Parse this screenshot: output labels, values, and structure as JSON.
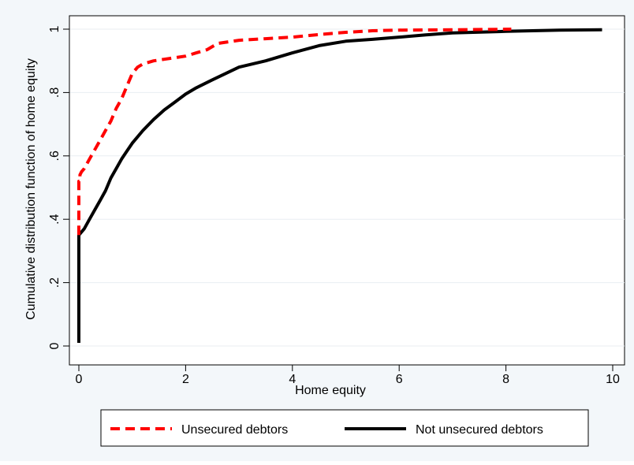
{
  "chart_data": {
    "type": "line",
    "title": "",
    "xlabel": "Home equity",
    "ylabel": "Cumulative distribution function of home equity",
    "xlim": [
      0,
      10
    ],
    "ylim": [
      0,
      1
    ],
    "x_ticks": [
      0,
      2,
      4,
      6,
      8,
      10
    ],
    "y_ticks": [
      0,
      0.2,
      0.4,
      0.6,
      0.8,
      1
    ],
    "x_tick_labels": [
      "0",
      "2",
      "4",
      "6",
      "8",
      "10"
    ],
    "y_tick_labels": [
      "0",
      ".2",
      ".4",
      ".6",
      ".8",
      "1"
    ],
    "grid": "horizontal",
    "legend_position": "bottom",
    "series": [
      {
        "name": "Unsecured debtors",
        "color": "#ff0000",
        "style": "dashed",
        "x": [
          0,
          0,
          0.02,
          0.02,
          0.05,
          0.1,
          0.2,
          0.3,
          0.4,
          0.5,
          0.6,
          0.7,
          0.8,
          0.9,
          1.0,
          1.1,
          1.2,
          1.4,
          1.6,
          1.8,
          2.0,
          2.2,
          2.4,
          2.6,
          2.8,
          3.0,
          3.5,
          4.0,
          4.5,
          5.0,
          5.5,
          6.0,
          7.0,
          8.1
        ],
        "y": [
          0.35,
          0.52,
          0.52,
          0.54,
          0.55,
          0.56,
          0.59,
          0.62,
          0.65,
          0.68,
          0.71,
          0.75,
          0.78,
          0.82,
          0.86,
          0.88,
          0.89,
          0.9,
          0.905,
          0.91,
          0.915,
          0.925,
          0.935,
          0.955,
          0.96,
          0.965,
          0.97,
          0.975,
          0.983,
          0.99,
          0.995,
          0.997,
          0.998,
          1.0
        ]
      },
      {
        "name": "Not unsecured debtors",
        "color": "#000000",
        "style": "solid",
        "x": [
          0,
          0,
          0.05,
          0.1,
          0.2,
          0.3,
          0.4,
          0.5,
          0.6,
          0.7,
          0.8,
          0.9,
          1.0,
          1.2,
          1.4,
          1.6,
          1.8,
          2.0,
          2.2,
          2.5,
          3.0,
          3.5,
          4.0,
          4.5,
          5.0,
          5.5,
          6.0,
          6.5,
          7.0,
          8.0,
          9.0,
          9.8
        ],
        "y": [
          0.01,
          0.35,
          0.36,
          0.37,
          0.4,
          0.43,
          0.46,
          0.49,
          0.53,
          0.56,
          0.59,
          0.615,
          0.64,
          0.68,
          0.715,
          0.745,
          0.77,
          0.795,
          0.815,
          0.84,
          0.88,
          0.9,
          0.925,
          0.948,
          0.962,
          0.968,
          0.975,
          0.982,
          0.988,
          0.993,
          0.997,
          0.998
        ]
      }
    ]
  }
}
